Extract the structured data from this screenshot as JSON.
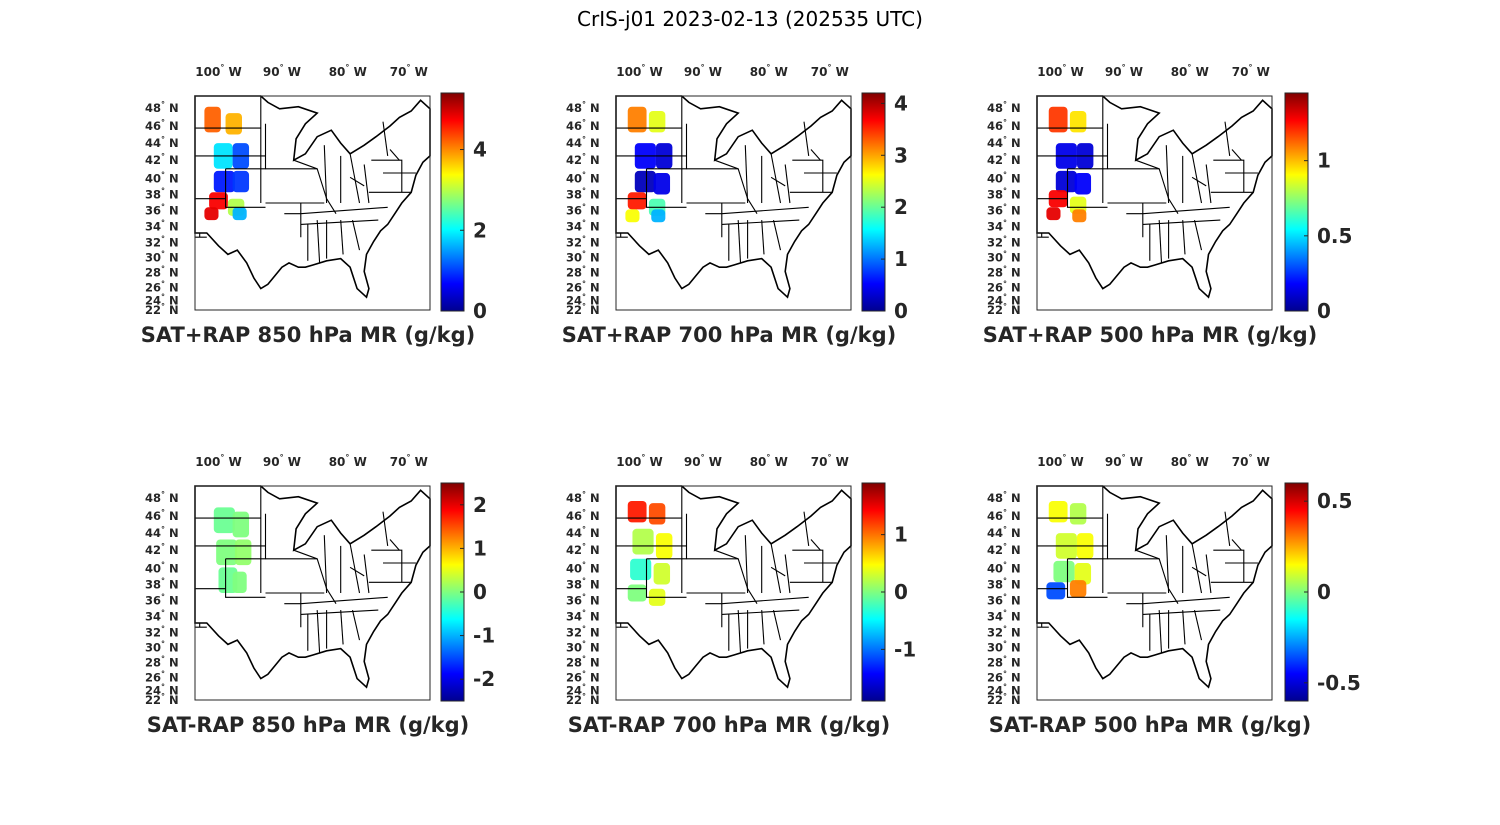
{
  "title": "CrIS-j01 2023-02-13 (202535 UTC)",
  "longitude_labels": [
    "100",
    "90",
    "80",
    "70"
  ],
  "longitude_hemisphere": "W",
  "latitude_labels": [
    "48",
    "46",
    "44",
    "42",
    "40",
    "38",
    "36",
    "34",
    "32",
    "30",
    "28",
    "26",
    "24",
    "22"
  ],
  "latitude_hemisphere": "N",
  "degree_symbol": "°",
  "colormap": "jet",
  "panels": [
    {
      "id": "sat-rap-sum-850",
      "title": "SAT+RAP 850 hPa MR (g/kg)",
      "clim": [
        0,
        5.4
      ],
      "ticks": [
        "0",
        "2",
        "4"
      ],
      "tick_values": [
        0,
        2,
        4
      ]
    },
    {
      "id": "sat-rap-sum-700",
      "title": "SAT+RAP 700 hPa MR (g/kg)",
      "clim": [
        0,
        4.2
      ],
      "ticks": [
        "0",
        "1",
        "2",
        "3",
        "4"
      ],
      "tick_values": [
        0,
        1,
        2,
        3,
        4
      ]
    },
    {
      "id": "sat-rap-sum-500",
      "title": "SAT+RAP 500 hPa MR (g/kg)",
      "clim": [
        0,
        1.45
      ],
      "ticks": [
        "0",
        "0.5",
        "1"
      ],
      "tick_values": [
        0,
        0.5,
        1
      ]
    },
    {
      "id": "sat-rap-diff-850",
      "title": "SAT-RAP 850 hPa MR (g/kg)",
      "clim": [
        -2.5,
        2.5
      ],
      "ticks": [
        "-2",
        "-1",
        "0",
        "1",
        "2"
      ],
      "tick_values": [
        -2,
        -1,
        0,
        1,
        2
      ]
    },
    {
      "id": "sat-rap-diff-700",
      "title": "SAT-RAP 700 hPa MR (g/kg)",
      "clim": [
        -1.9,
        1.9
      ],
      "ticks": [
        "-1",
        "0",
        "1"
      ],
      "tick_values": [
        -1,
        0,
        1
      ]
    },
    {
      "id": "sat-rap-diff-500",
      "title": "SAT-RAP 500 hPa MR (g/kg)",
      "clim": [
        -0.6,
        0.6
      ],
      "ticks": [
        "-0.5",
        "0",
        "0.5"
      ],
      "tick_values": [
        -0.5,
        0,
        0.5
      ]
    }
  ]
}
